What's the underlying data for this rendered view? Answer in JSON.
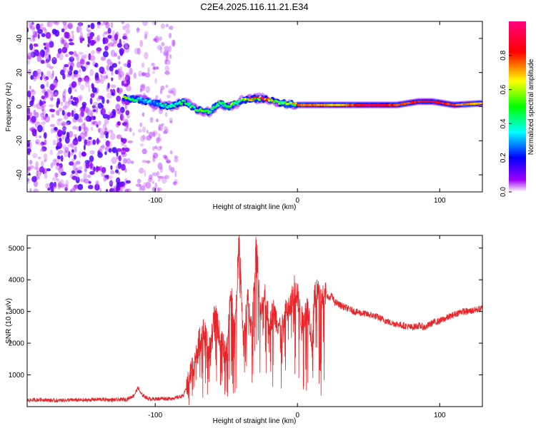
{
  "chart_data": [
    {
      "type": "heatmap",
      "title": "C2E4.2025.116.11.21.E34",
      "xlabel": "Height of straight line (km)",
      "ylabel": "Frequency (Hz)",
      "xlim": [
        -190,
        130
      ],
      "ylim": [
        -50,
        50
      ],
      "xticks": [
        -100,
        0,
        100
      ],
      "yticks": [
        40,
        20,
        0,
        -20,
        -40
      ],
      "colorbar": {
        "label": "Normalized spectral amplitude",
        "range": [
          0,
          1
        ],
        "ticks": [
          0.0,
          0.2,
          0.4,
          0.6,
          0.8
        ],
        "colormap": [
          "#ffffff",
          "#a000ff",
          "#0000ff",
          "#00ffff",
          "#00ff00",
          "#ffff00",
          "#ff0000",
          "#ff0080"
        ]
      },
      "noise_region": {
        "x_from": -190,
        "x_to": -85,
        "dense_to": -118
      },
      "ridge": [
        {
          "x": -122,
          "y": 5,
          "amp": 0.7
        },
        {
          "x": -110,
          "y": 4,
          "amp": 0.35
        },
        {
          "x": -100,
          "y": 2,
          "amp": 0.35
        },
        {
          "x": -90,
          "y": 0,
          "amp": 0.45
        },
        {
          "x": -80,
          "y": 3,
          "amp": 0.5
        },
        {
          "x": -70,
          "y": -2,
          "amp": 0.55
        },
        {
          "x": -62,
          "y": -3,
          "amp": 0.6
        },
        {
          "x": -55,
          "y": 2,
          "amp": 0.5
        },
        {
          "x": -48,
          "y": 0,
          "amp": 0.55
        },
        {
          "x": -38,
          "y": 4,
          "amp": 0.6
        },
        {
          "x": -25,
          "y": 5,
          "amp": 0.95
        },
        {
          "x": -10,
          "y": 2,
          "amp": 0.55
        },
        {
          "x": 0,
          "y": 1,
          "amp": 0.8
        },
        {
          "x": 15,
          "y": 1,
          "amp": 0.75
        },
        {
          "x": 30,
          "y": 1,
          "amp": 0.7
        },
        {
          "x": 50,
          "y": 1,
          "amp": 0.95
        },
        {
          "x": 70,
          "y": 1,
          "amp": 0.8
        },
        {
          "x": 85,
          "y": 3,
          "amp": 0.85
        },
        {
          "x": 95,
          "y": 3,
          "amp": 0.9
        },
        {
          "x": 110,
          "y": 1,
          "amp": 0.8
        },
        {
          "x": 130,
          "y": 2,
          "amp": 0.7
        }
      ]
    },
    {
      "type": "line",
      "xlabel": "Height of straight line (km)",
      "ylabel": "SNR (10 * v/v)",
      "xlim": [
        -190,
        130
      ],
      "ylim": [
        0,
        5400
      ],
      "xticks": [
        -100,
        0,
        100
      ],
      "yticks": [
        1000,
        2000,
        3000,
        4000,
        5000
      ],
      "color": "#e8262a",
      "x": [
        -190,
        -180,
        -170,
        -160,
        -150,
        -140,
        -130,
        -120,
        -115,
        -112,
        -110,
        -105,
        -100,
        -95,
        -90,
        -85,
        -80,
        -76,
        -73,
        -70,
        -66,
        -62,
        -58,
        -54,
        -50,
        -47,
        -44,
        -41,
        -38,
        -35,
        -32,
        -29,
        -26,
        -23,
        -20,
        -17,
        -14,
        -11,
        -8,
        -5,
        -2,
        0,
        2,
        4,
        6,
        8,
        10,
        12,
        14,
        16,
        18,
        20,
        22,
        24,
        26,
        30,
        35,
        40,
        45,
        50,
        55,
        60,
        65,
        70,
        75,
        80,
        85,
        90,
        95,
        100,
        105,
        110,
        115,
        120,
        125,
        130
      ],
      "y": [
        200,
        220,
        190,
        210,
        200,
        230,
        210,
        230,
        350,
        600,
        400,
        250,
        240,
        260,
        250,
        280,
        350,
        900,
        1400,
        1900,
        2400,
        1700,
        2900,
        2100,
        1600,
        3600,
        2400,
        5300,
        2000,
        3400,
        2300,
        5400,
        2800,
        3600,
        2600,
        3000,
        2700,
        2400,
        3000,
        3100,
        3800,
        3500,
        2900,
        2600,
        3100,
        3000,
        2100,
        3400,
        3700,
        3300,
        3500,
        3600,
        3400,
        3500,
        3300,
        3200,
        3100,
        3000,
        2950,
        2900,
        2850,
        2750,
        2650,
        2600,
        2550,
        2500,
        2550,
        2500,
        2650,
        2700,
        2800,
        2900,
        3000,
        3000,
        3050,
        3100
      ]
    }
  ]
}
